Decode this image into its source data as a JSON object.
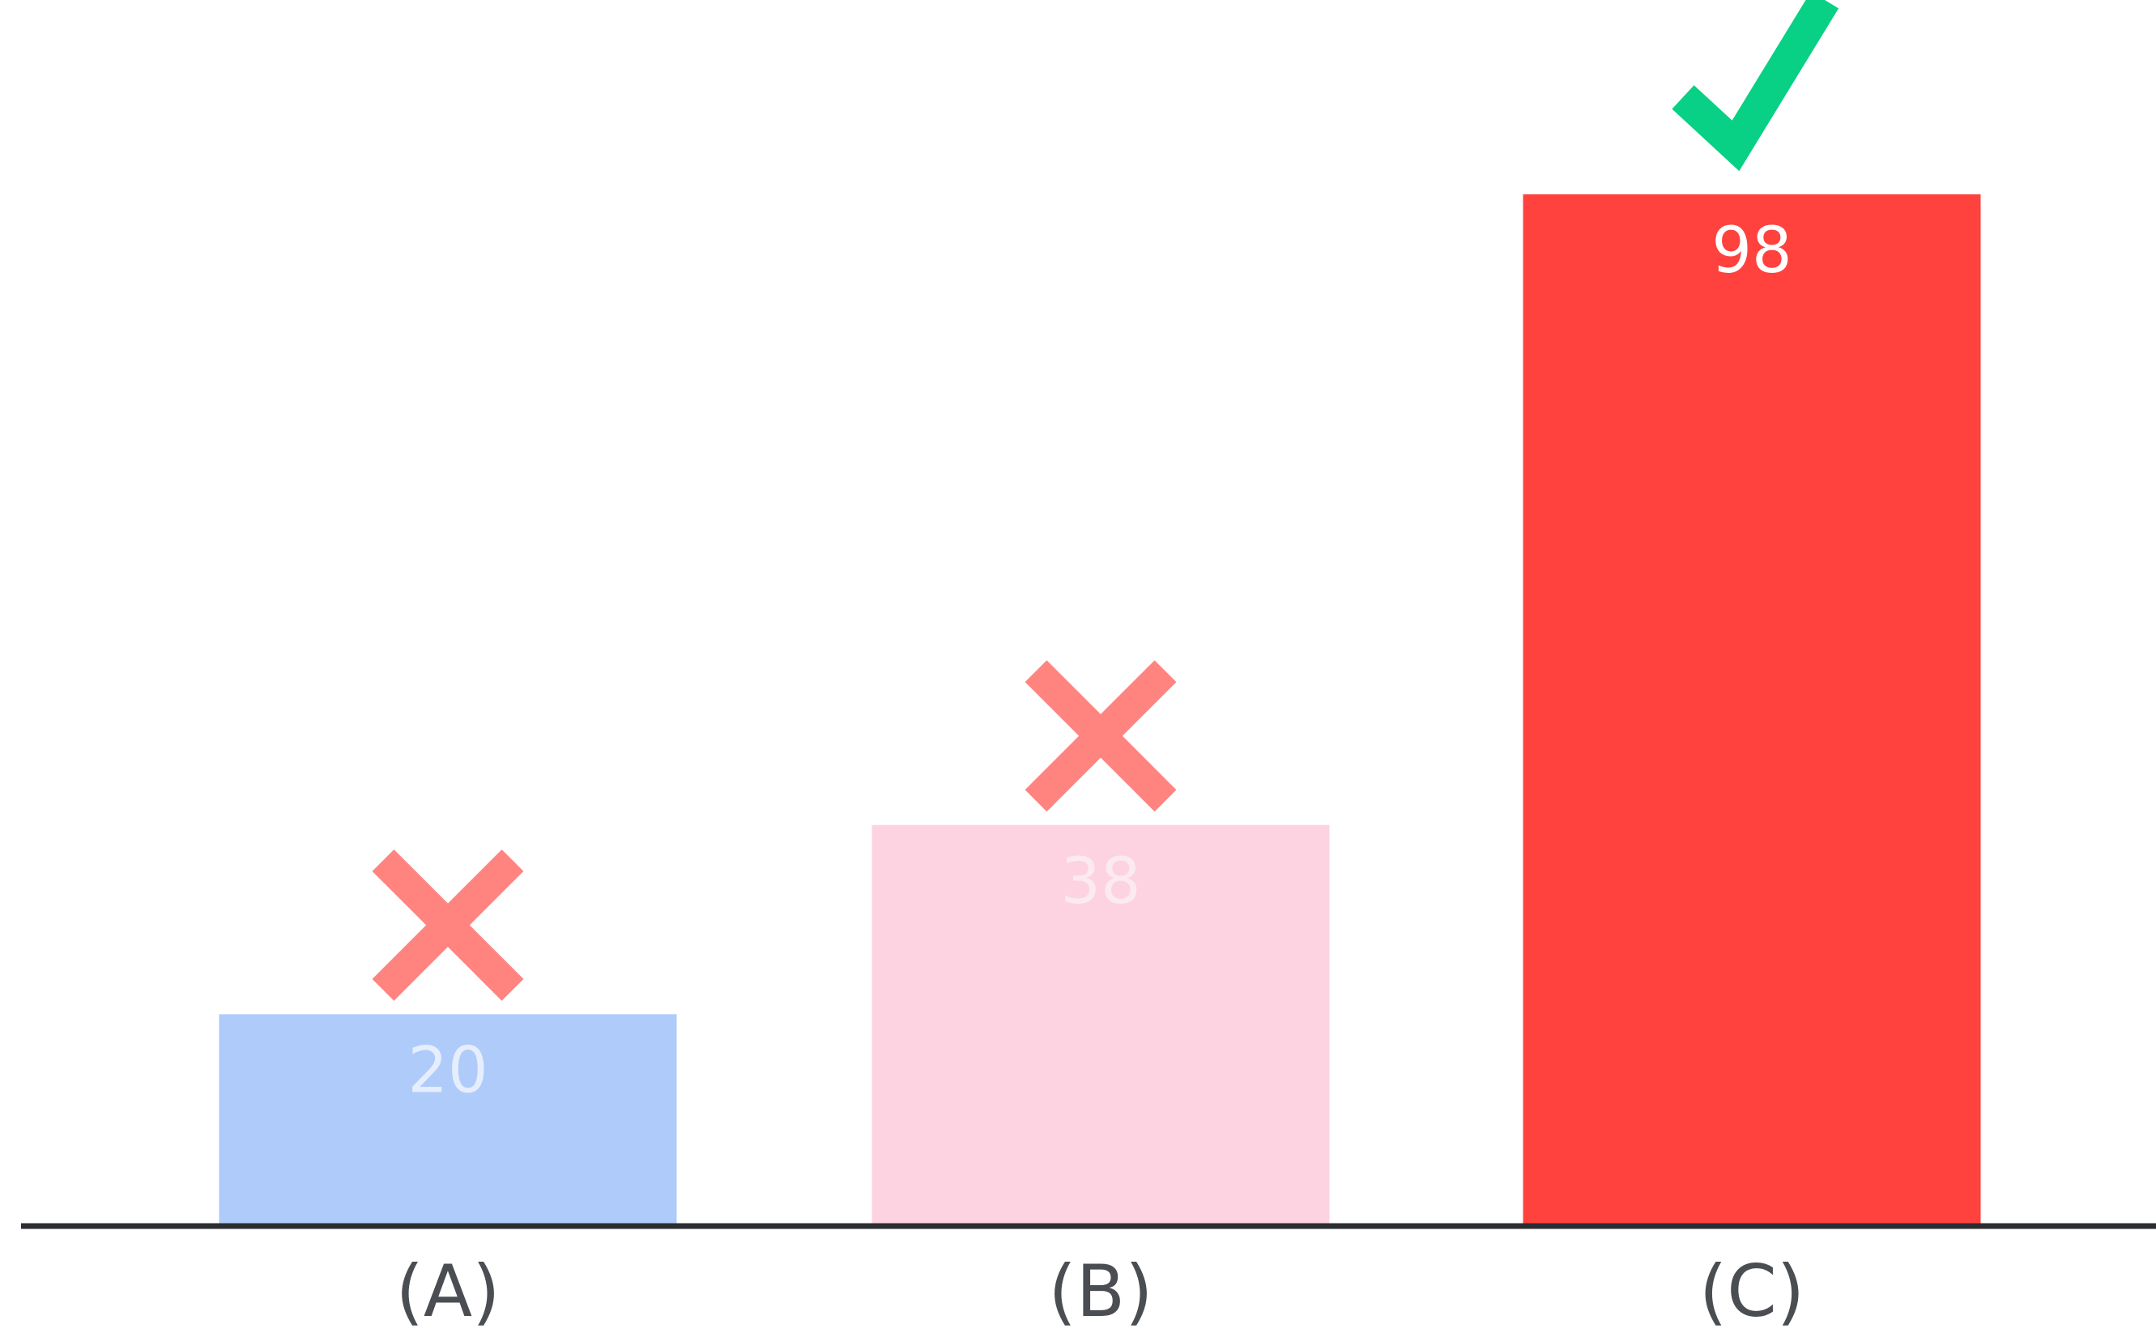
{
  "chart_data": {
    "type": "bar",
    "categories": [
      "(A)",
      "(B)",
      "(C)"
    ],
    "values": [
      20,
      38,
      98
    ],
    "ylim": [
      0,
      100
    ],
    "bar_colors": [
      "#aecbfa",
      "#fdd3e1",
      "#ff423d"
    ],
    "value_label_colors": [
      "#e6edfc",
      "#fbeaf0",
      "#ffffff"
    ],
    "markers": [
      {
        "icon": "cross-icon",
        "color": "#ff8480"
      },
      {
        "icon": "cross-icon",
        "color": "#ff8480"
      },
      {
        "icon": "checkmark-icon",
        "color": "#08d084"
      }
    ],
    "axis_color": "#2a2d31",
    "category_label_color": "#4a4d52",
    "grid": false
  }
}
